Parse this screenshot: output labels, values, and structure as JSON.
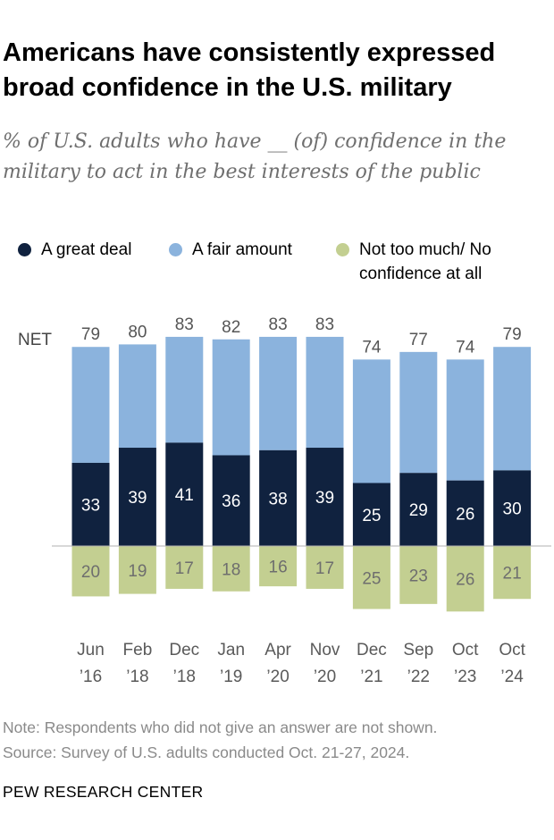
{
  "header": {
    "title": "Americans have consistently expressed broad confidence in the U.S. military",
    "subtitle": "% of U.S. adults who have __ (of) confidence in the military to act in the best interests of the public"
  },
  "legend": {
    "great_deal": "A great deal",
    "fair_amount": "A fair amount",
    "not_too_much": "Not too much/ No confidence at all"
  },
  "colors": {
    "great_deal": "#10223f",
    "fair_amount": "#8bb3dd",
    "not_too_much": "#c3cf91",
    "baseline": "#b0b0b0"
  },
  "footer": {
    "note": "Note: Respondents who did not give an answer are not shown.",
    "source": "Source: Survey of U.S. adults conducted Oct. 21-27, 2024.",
    "org": "PEW RESEARCH CENTER"
  },
  "chart_data": {
    "type": "bar",
    "stacked": true,
    "net_label": "NET",
    "categories": [
      [
        "Jun",
        "’16"
      ],
      [
        "Feb",
        "’18"
      ],
      [
        "Dec",
        "’18"
      ],
      [
        "Jan",
        "’19"
      ],
      [
        "Apr",
        "’20"
      ],
      [
        "Nov",
        "’20"
      ],
      [
        "Dec",
        "’21"
      ],
      [
        "Sep",
        "’22"
      ],
      [
        "Oct",
        "’23"
      ],
      [
        "Oct",
        "’24"
      ]
    ],
    "net": [
      79,
      80,
      83,
      82,
      83,
      83,
      74,
      77,
      74,
      79
    ],
    "series": [
      {
        "name": "A great deal",
        "key": "great_deal",
        "values": [
          33,
          39,
          41,
          36,
          38,
          39,
          25,
          29,
          26,
          30
        ]
      },
      {
        "name": "A fair amount",
        "key": "fair_amount",
        "values": [
          46,
          41,
          42,
          46,
          45,
          44,
          49,
          48,
          48,
          49
        ]
      },
      {
        "name": "Not too much/ No confidence at all",
        "key": "not_too_much",
        "values": [
          20,
          19,
          17,
          18,
          16,
          17,
          25,
          23,
          26,
          21
        ]
      }
    ]
  }
}
